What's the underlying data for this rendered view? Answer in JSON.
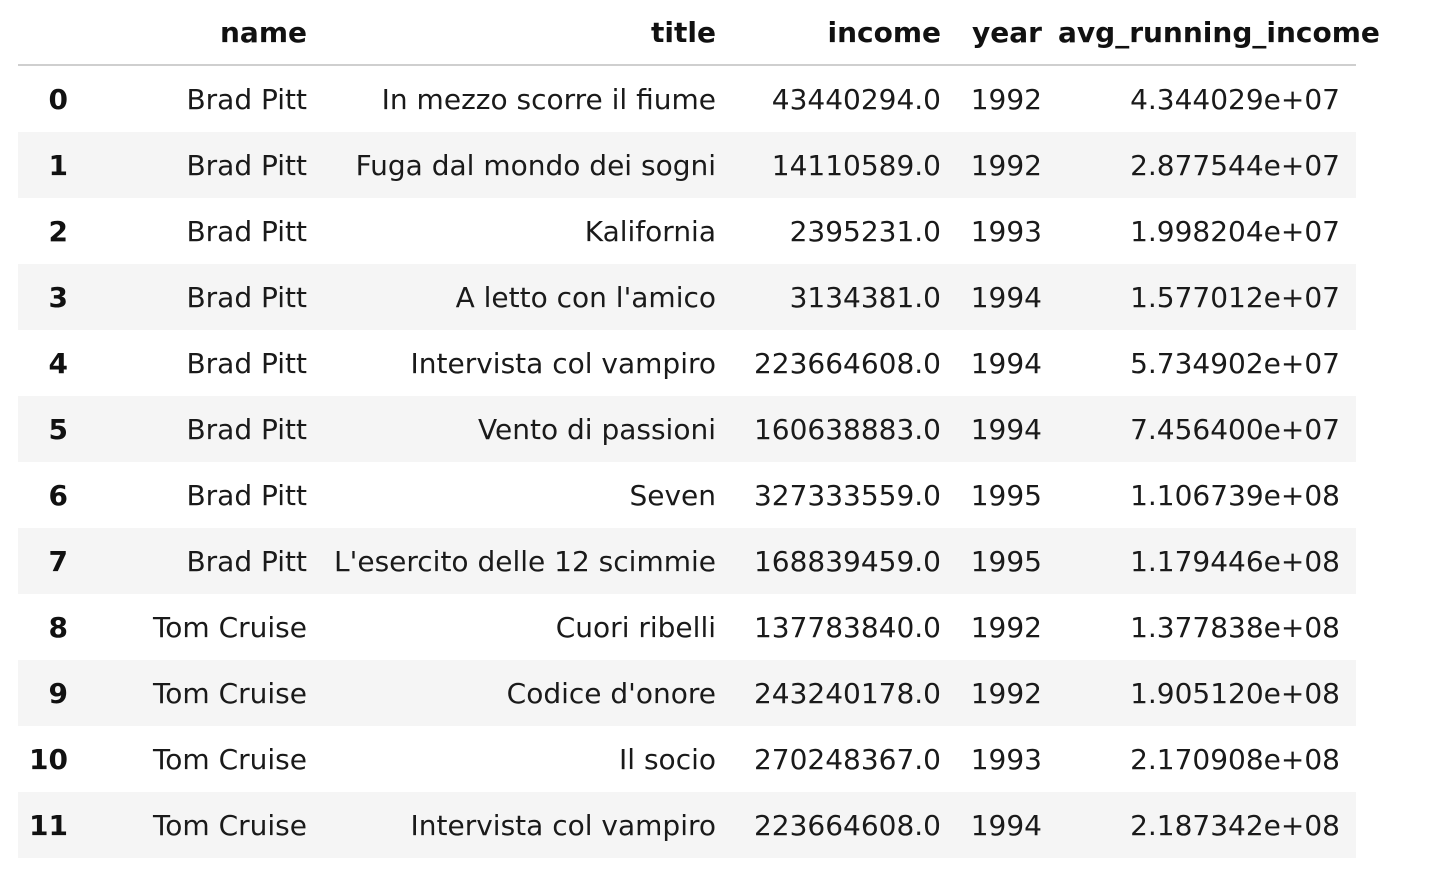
{
  "table": {
    "columns": [
      "",
      "name",
      "title",
      "income",
      "year",
      "avg_running_income"
    ],
    "rows": [
      {
        "index": "0",
        "name": "Brad Pitt",
        "title": "In mezzo scorre il fiume",
        "income": "43440294.0",
        "year": "1992",
        "avg_running_income": "4.344029e+07"
      },
      {
        "index": "1",
        "name": "Brad Pitt",
        "title": "Fuga dal mondo dei sogni",
        "income": "14110589.0",
        "year": "1992",
        "avg_running_income": "2.877544e+07"
      },
      {
        "index": "2",
        "name": "Brad Pitt",
        "title": "Kalifornia",
        "income": "2395231.0",
        "year": "1993",
        "avg_running_income": "1.998204e+07"
      },
      {
        "index": "3",
        "name": "Brad Pitt",
        "title": "A letto con l'amico",
        "income": "3134381.0",
        "year": "1994",
        "avg_running_income": "1.577012e+07"
      },
      {
        "index": "4",
        "name": "Brad Pitt",
        "title": "Intervista col vampiro",
        "income": "223664608.0",
        "year": "1994",
        "avg_running_income": "5.734902e+07"
      },
      {
        "index": "5",
        "name": "Brad Pitt",
        "title": "Vento di passioni",
        "income": "160638883.0",
        "year": "1994",
        "avg_running_income": "7.456400e+07"
      },
      {
        "index": "6",
        "name": "Brad Pitt",
        "title": "Seven",
        "income": "327333559.0",
        "year": "1995",
        "avg_running_income": "1.106739e+08"
      },
      {
        "index": "7",
        "name": "Brad Pitt",
        "title": "L'esercito delle 12 scimmie",
        "income": "168839459.0",
        "year": "1995",
        "avg_running_income": "1.179446e+08"
      },
      {
        "index": "8",
        "name": "Tom Cruise",
        "title": "Cuori ribelli",
        "income": "137783840.0",
        "year": "1992",
        "avg_running_income": "1.377838e+08"
      },
      {
        "index": "9",
        "name": "Tom Cruise",
        "title": "Codice d'onore",
        "income": "243240178.0",
        "year": "1992",
        "avg_running_income": "1.905120e+08"
      },
      {
        "index": "10",
        "name": "Tom Cruise",
        "title": "Il socio",
        "income": "270248367.0",
        "year": "1993",
        "avg_running_income": "2.170908e+08"
      },
      {
        "index": "11",
        "name": "Tom Cruise",
        "title": "Intervista col vampiro",
        "income": "223664608.0",
        "year": "1994",
        "avg_running_income": "2.187342e+08"
      }
    ]
  }
}
